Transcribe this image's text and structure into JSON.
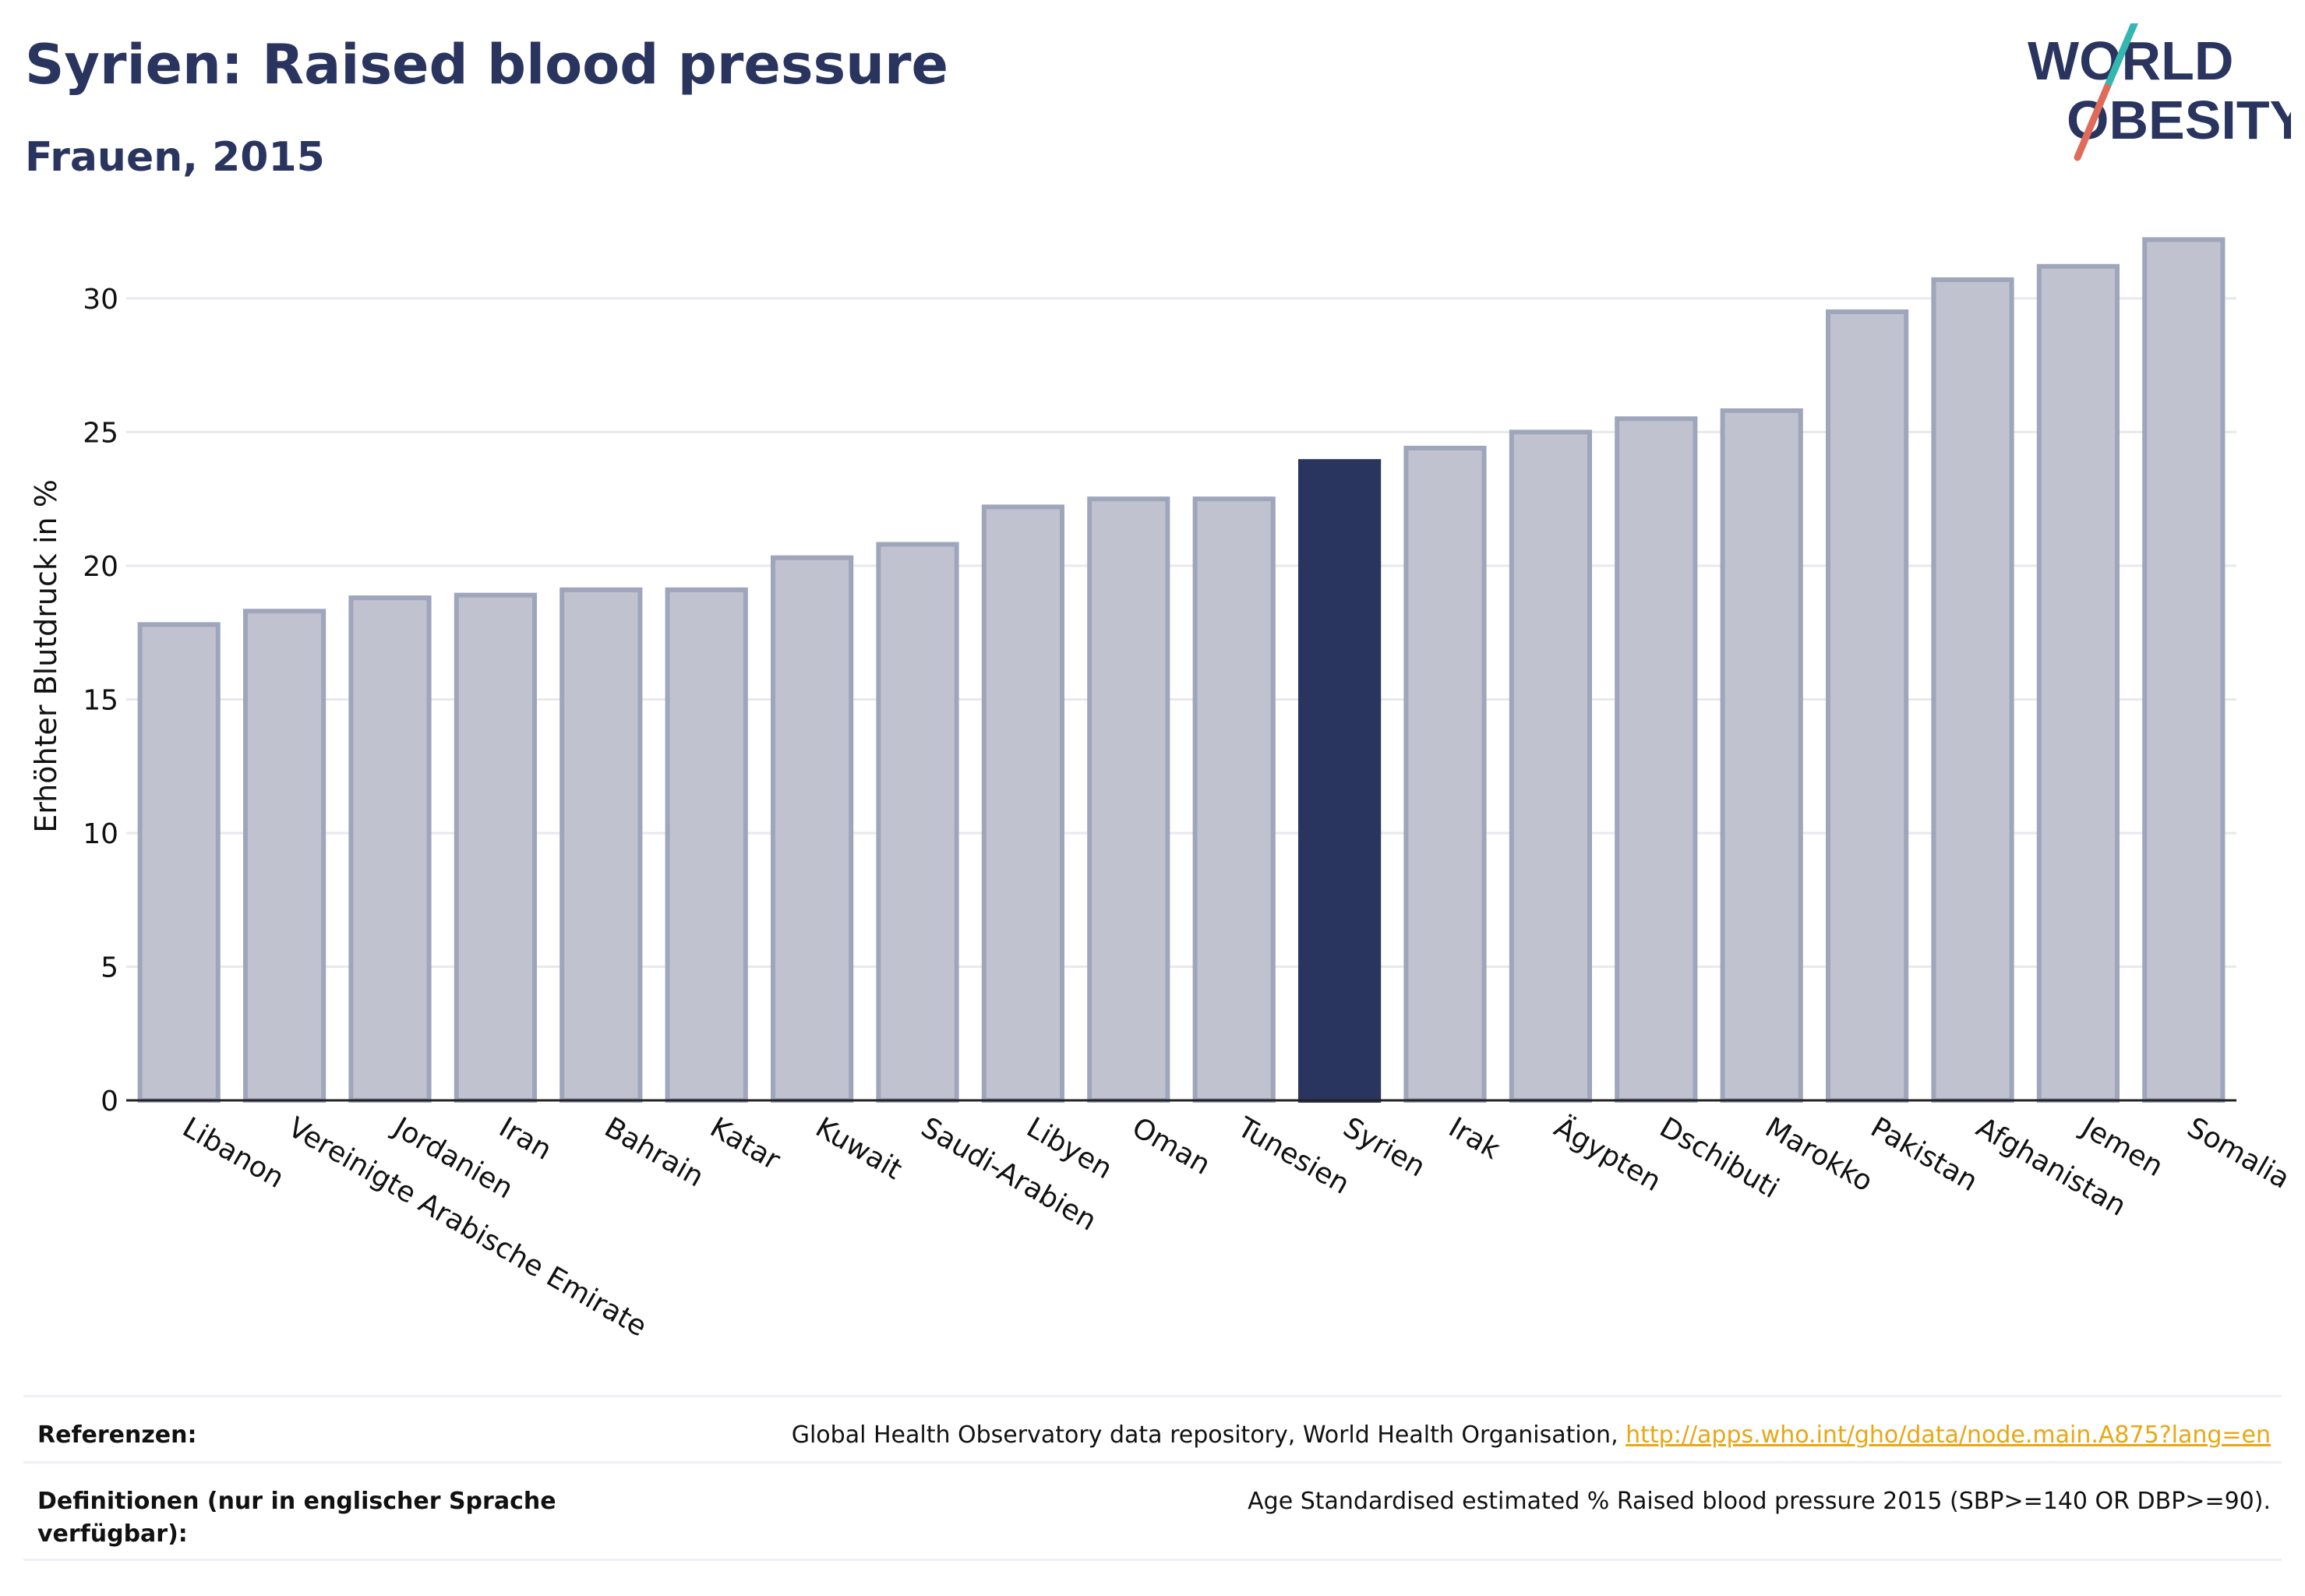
{
  "header": {
    "title": "Syrien: Raised blood pressure",
    "subtitle": "Frauen, 2015"
  },
  "logo": {
    "line1": "WORLD",
    "line2": "OBESITY",
    "colors": {
      "text": "#2a355f",
      "slash_top": "#34b7b0",
      "slash_bottom": "#e06b5a"
    }
  },
  "chart_data": {
    "type": "bar",
    "categories": [
      "Libanon",
      "Vereinigte Arabische Emirate",
      "Jordanien",
      "Iran",
      "Bahrain",
      "Katar",
      "Kuwait",
      "Saudi-Arabien",
      "Libyen",
      "Oman",
      "Tunesien",
      "Syrien",
      "Irak",
      "Ägypten",
      "Dschibuti",
      "Marokko",
      "Pakistan",
      "Afghanistan",
      "Jemen",
      "Somalia"
    ],
    "values": [
      17.8,
      18.3,
      18.8,
      18.9,
      19.1,
      19.1,
      20.3,
      20.8,
      22.2,
      22.5,
      22.5,
      23.9,
      24.4,
      25.0,
      25.5,
      25.8,
      29.5,
      30.7,
      31.2,
      32.2
    ],
    "highlight": "Syrien",
    "ylabel": "Erhöhter Blutdruck in %",
    "xlabel": "",
    "ylim": [
      0,
      33
    ],
    "yticks": [
      0,
      5,
      10,
      15,
      20,
      25,
      30
    ],
    "grid": true,
    "colors": {
      "bar": "#c0c3cf",
      "bar_border": "#9fa5bb",
      "highlight": "#2a355f",
      "grid": "#e8e9ee",
      "axis": "#222222"
    }
  },
  "footer": {
    "references_label": "Referenzen:",
    "references_text": "Global Health Observatory data repository, World Health Organisation, ",
    "references_link": "http://apps.who.int/gho/data/node.main.A875?lang=en",
    "definitions_label": "Definitionen (nur in englischer Sprache verfügbar):",
    "definitions_text": "Age Standardised estimated % Raised blood pressure 2015 (SBP>=140 OR DBP>=90)."
  }
}
